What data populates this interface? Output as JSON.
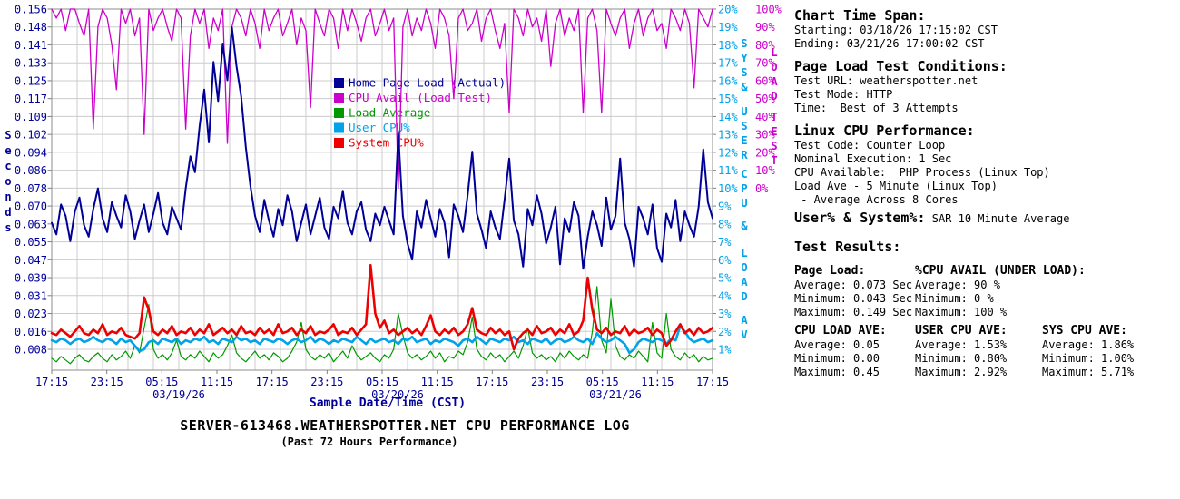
{
  "chart_data": {
    "type": "line",
    "title": "SERVER-613468.WEATHERSPOTTER.NET CPU PERFORMANCE LOG",
    "subtitle": "(Past 72 Hours Performance)",
    "x_start": "03/18/26 17:15",
    "x_end": "03/21/26 17:00",
    "sample_interval_hours": 0.5,
    "grid_color": "#CCCCCC",
    "frame_color": "#A0A0A0",
    "x_axis": {
      "label": "Sample Date/Time (CST)",
      "label_color": "#000099",
      "tick_labels": [
        "17:15",
        "23:15",
        "05:15",
        "11:15",
        "17:15",
        "23:15",
        "05:15",
        "11:15",
        "17:15",
        "23:15",
        "05:15",
        "11:15",
        "17:15"
      ],
      "date_labels": [
        {
          "text": "03/19/26",
          "x": 197
        },
        {
          "text": "03/20/26",
          "x": 438
        },
        {
          "text": "03/21/26",
          "x": 678
        }
      ]
    },
    "y_axis_left": {
      "label": "Seconds",
      "color": "#000099",
      "max": 0.156,
      "min_tick": 0.008,
      "ticks": [
        "0.156",
        "0.148",
        "0.141",
        "0.133",
        "0.125",
        "0.117",
        "0.109",
        "0.102",
        "0.094",
        "0.086",
        "0.078",
        "0.070",
        "0.063",
        "0.055",
        "0.047",
        "0.039",
        "0.031",
        "0.023",
        "0.016",
        "0.008"
      ],
      "title_segments": [
        {
          "text": "Seconds",
          "y": 143
        }
      ]
    },
    "y_axis_right_pct": {
      "label": "SYS & USER CPU & LOAD AV",
      "color": "#00A2E8",
      "max": 20,
      "min_tick": 1,
      "ticks": [
        "20%",
        "19%",
        "18%",
        "17%",
        "16%",
        "15%",
        "14%",
        "13%",
        "12%",
        "11%",
        "10%",
        "9%",
        "8%",
        "7%",
        "6%",
        "5%",
        "4%",
        "3%",
        "2%",
        "1%"
      ],
      "title_segments": [
        {
          "text": "SYS",
          "y": 42
        },
        {
          "text": "&",
          "y": 90
        },
        {
          "text": "USER",
          "y": 117
        },
        {
          "text": "CPU",
          "y": 186
        },
        {
          "text": "&",
          "y": 243
        },
        {
          "text": "LOAD",
          "y": 273
        },
        {
          "text": "AV",
          "y": 347
        }
      ]
    },
    "y_axis_right_load": {
      "label": "LOAD TEST",
      "color": "#CC00CC",
      "max": 100,
      "min_tick": 0,
      "ticks": [
        "100%",
        "90%",
        "80%",
        "70%",
        "60%",
        "50%",
        "40%",
        "30%",
        "20%",
        "10%",
        "0%"
      ],
      "title_segments": [
        {
          "text": "LOAD",
          "y": 52
        },
        {
          "text": "TEST",
          "y": 123
        }
      ]
    },
    "series": [
      {
        "name": "Home Page Load (Actual)",
        "axis": "seconds",
        "color": "#000099",
        "width": 2,
        "z": 2,
        "values": [
          0.063,
          0.058,
          0.071,
          0.066,
          0.055,
          0.068,
          0.074,
          0.062,
          0.057,
          0.069,
          0.078,
          0.065,
          0.059,
          0.072,
          0.066,
          0.061,
          0.075,
          0.068,
          0.056,
          0.064,
          0.071,
          0.059,
          0.067,
          0.076,
          0.063,
          0.058,
          0.07,
          0.065,
          0.06,
          0.078,
          0.092,
          0.085,
          0.105,
          0.121,
          0.098,
          0.133,
          0.116,
          0.141,
          0.125,
          0.148,
          0.131,
          0.118,
          0.096,
          0.079,
          0.066,
          0.059,
          0.073,
          0.064,
          0.057,
          0.069,
          0.062,
          0.075,
          0.068,
          0.055,
          0.063,
          0.071,
          0.058,
          0.066,
          0.074,
          0.061,
          0.056,
          0.07,
          0.065,
          0.077,
          0.063,
          0.058,
          0.068,
          0.072,
          0.06,
          0.055,
          0.067,
          0.062,
          0.07,
          0.064,
          0.058,
          0.102,
          0.066,
          0.054,
          0.047,
          0.068,
          0.061,
          0.073,
          0.065,
          0.057,
          0.069,
          0.063,
          0.048,
          0.071,
          0.066,
          0.059,
          0.075,
          0.094,
          0.067,
          0.06,
          0.052,
          0.068,
          0.061,
          0.056,
          0.073,
          0.091,
          0.064,
          0.058,
          0.044,
          0.069,
          0.062,
          0.075,
          0.067,
          0.054,
          0.061,
          0.07,
          0.045,
          0.065,
          0.059,
          0.072,
          0.066,
          0.043,
          0.057,
          0.068,
          0.062,
          0.053,
          0.074,
          0.06,
          0.066,
          0.091,
          0.063,
          0.056,
          0.044,
          0.07,
          0.065,
          0.058,
          0.071,
          0.052,
          0.046,
          0.067,
          0.061,
          0.073,
          0.055,
          0.068,
          0.062,
          0.057,
          0.07,
          0.095,
          0.072,
          0.065
        ]
      },
      {
        "name": "CPU Avail (Load Test)",
        "axis": "load",
        "color": "#CC00CC",
        "width": 1.3,
        "z": 1,
        "values": [
          100,
          95,
          100,
          88,
          100,
          100,
          92,
          85,
          100,
          33,
          90,
          100,
          95,
          80,
          55,
          100,
          92,
          100,
          85,
          95,
          30,
          100,
          88,
          95,
          100,
          90,
          82,
          100,
          95,
          33,
          85,
          100,
          92,
          100,
          78,
          95,
          88,
          100,
          25,
          90,
          100,
          95,
          85,
          100,
          92,
          78,
          100,
          88,
          95,
          100,
          85,
          92,
          100,
          80,
          95,
          88,
          45,
          100,
          92,
          85,
          100,
          95,
          78,
          100,
          88,
          100,
          92,
          82,
          95,
          100,
          85,
          92,
          100,
          88,
          95,
          0,
          90,
          100,
          85,
          95,
          88,
          100,
          92,
          78,
          100,
          95,
          85,
          50,
          95,
          100,
          88,
          92,
          100,
          82,
          95,
          100,
          88,
          78,
          92,
          42,
          100,
          95,
          85,
          100,
          90,
          95,
          82,
          100,
          68,
          92,
          100,
          85,
          95,
          88,
          100,
          42,
          95,
          100,
          88,
          42,
          100,
          92,
          85,
          95,
          100,
          78,
          92,
          100,
          85,
          95,
          100,
          88,
          92,
          78,
          100,
          95,
          88,
          100,
          92,
          56,
          100,
          95,
          90,
          100
        ]
      },
      {
        "name": "Load Average",
        "axis": "pct",
        "color": "#009900",
        "width": 1.2,
        "z": 3,
        "value_scale": 10,
        "values": [
          0.05,
          0.03,
          0.06,
          0.04,
          0.02,
          0.05,
          0.07,
          0.04,
          0.03,
          0.06,
          0.08,
          0.05,
          0.03,
          0.07,
          0.04,
          0.06,
          0.09,
          0.05,
          0.12,
          0.08,
          0.22,
          0.35,
          0.1,
          0.05,
          0.07,
          0.04,
          0.08,
          0.15,
          0.06,
          0.04,
          0.07,
          0.05,
          0.09,
          0.06,
          0.03,
          0.08,
          0.05,
          0.07,
          0.12,
          0.18,
          0.08,
          0.05,
          0.03,
          0.06,
          0.09,
          0.05,
          0.07,
          0.04,
          0.08,
          0.06,
          0.03,
          0.05,
          0.09,
          0.14,
          0.25,
          0.1,
          0.06,
          0.04,
          0.07,
          0.05,
          0.08,
          0.03,
          0.06,
          0.09,
          0.05,
          0.12,
          0.07,
          0.04,
          0.06,
          0.08,
          0.05,
          0.03,
          0.07,
          0.05,
          0.1,
          0.3,
          0.18,
          0.08,
          0.05,
          0.07,
          0.04,
          0.06,
          0.09,
          0.05,
          0.08,
          0.03,
          0.06,
          0.05,
          0.09,
          0.07,
          0.14,
          0.28,
          0.1,
          0.06,
          0.04,
          0.08,
          0.05,
          0.07,
          0.03,
          0.06,
          0.09,
          0.05,
          0.12,
          0.22,
          0.08,
          0.05,
          0.07,
          0.04,
          0.06,
          0.03,
          0.08,
          0.05,
          0.09,
          0.06,
          0.04,
          0.07,
          0.05,
          0.2,
          0.45,
          0.15,
          0.08,
          0.38,
          0.12,
          0.06,
          0.04,
          0.07,
          0.05,
          0.09,
          0.06,
          0.03,
          0.25,
          0.08,
          0.05,
          0.3,
          0.1,
          0.06,
          0.04,
          0.08,
          0.05,
          0.07,
          0.03,
          0.06,
          0.04,
          0.05
        ]
      },
      {
        "name": "User CPU%",
        "axis": "pct",
        "color": "#00A2E8",
        "width": 2.6,
        "z": 4,
        "values": [
          1.5,
          1.4,
          1.6,
          1.5,
          1.3,
          1.5,
          1.6,
          1.4,
          1.5,
          1.7,
          1.5,
          1.4,
          1.6,
          1.5,
          1.3,
          1.6,
          1.4,
          1.5,
          1.2,
          0.9,
          1.0,
          1.4,
          1.5,
          1.3,
          1.6,
          1.5,
          1.4,
          1.6,
          1.3,
          1.5,
          1.4,
          1.6,
          1.5,
          1.7,
          1.4,
          1.5,
          1.3,
          1.6,
          1.5,
          1.4,
          1.7,
          1.5,
          1.6,
          1.4,
          1.5,
          1.3,
          1.6,
          1.5,
          1.4,
          1.6,
          1.5,
          1.3,
          1.5,
          1.6,
          1.4,
          1.5,
          1.7,
          1.4,
          1.6,
          1.5,
          1.3,
          1.5,
          1.4,
          1.6,
          1.5,
          1.4,
          1.7,
          1.5,
          1.3,
          1.6,
          1.4,
          1.5,
          1.6,
          1.4,
          1.5,
          1.3,
          1.6,
          1.5,
          1.7,
          1.4,
          1.5,
          1.6,
          1.3,
          1.5,
          1.4,
          1.6,
          1.5,
          1.4,
          1.2,
          1.5,
          1.6,
          1.4,
          1.7,
          1.5,
          1.3,
          1.6,
          1.5,
          1.4,
          1.6,
          1.5,
          1.7,
          1.4,
          1.5,
          1.3,
          1.6,
          1.5,
          1.4,
          1.6,
          1.3,
          1.5,
          1.6,
          1.4,
          1.5,
          1.7,
          1.5,
          1.4,
          1.6,
          1.3,
          1.9,
          1.6,
          1.4,
          1.5,
          1.7,
          1.5,
          1.3,
          0.8,
          1.0,
          1.4,
          1.6,
          1.5,
          1.4,
          1.6,
          1.5,
          1.3,
          1.6,
          1.5,
          2.3,
          2.0,
          1.6,
          1.4,
          1.5,
          1.6,
          1.4,
          1.5
        ]
      },
      {
        "name": "System CPU%",
        "axis": "pct",
        "color": "#EE0000",
        "width": 2.6,
        "z": 5,
        "values": [
          1.9,
          1.8,
          2.1,
          1.9,
          1.7,
          2.0,
          2.3,
          1.9,
          1.8,
          2.1,
          1.9,
          2.4,
          1.8,
          2.0,
          1.9,
          2.2,
          1.8,
          1.7,
          1.6,
          1.9,
          3.9,
          3.2,
          2.0,
          1.8,
          2.1,
          1.9,
          2.3,
          1.8,
          2.0,
          1.9,
          2.2,
          1.8,
          2.1,
          1.9,
          2.4,
          1.8,
          2.0,
          2.2,
          1.9,
          2.1,
          1.8,
          2.3,
          1.9,
          2.0,
          1.8,
          2.2,
          1.9,
          2.1,
          1.8,
          2.4,
          1.9,
          2.0,
          2.2,
          1.8,
          2.1,
          1.9,
          2.3,
          1.8,
          2.0,
          1.9,
          2.1,
          2.4,
          1.8,
          2.0,
          1.9,
          2.2,
          1.8,
          2.1,
          2.4,
          5.7,
          3.0,
          2.2,
          2.6,
          1.9,
          2.1,
          1.8,
          2.0,
          2.2,
          1.9,
          2.1,
          1.8,
          2.3,
          2.9,
          2.0,
          1.8,
          2.1,
          1.9,
          2.2,
          1.8,
          2.0,
          2.4,
          3.3,
          2.1,
          1.9,
          1.8,
          2.2,
          1.9,
          2.1,
          1.8,
          2.0,
          1.0,
          1.6,
          1.9,
          2.1,
          1.8,
          2.3,
          1.9,
          2.0,
          2.2,
          1.8,
          2.1,
          1.9,
          2.4,
          1.8,
          2.0,
          2.6,
          5.0,
          3.2,
          2.1,
          1.9,
          2.2,
          1.8,
          2.0,
          1.9,
          2.3,
          1.8,
          2.1,
          1.9,
          2.0,
          2.2,
          1.8,
          2.1,
          1.9,
          1.2,
          1.5,
          2.0,
          2.4,
          1.9,
          2.1,
          1.8,
          2.2,
          1.9,
          2.0,
          2.2
        ]
      }
    ]
  },
  "info_panel": {
    "sections": [
      {
        "heading": "Chart Time Span:",
        "lines": [
          "Starting: 03/18/26 17:15:02 CST",
          "Ending: 03/21/26 17:00:02 CST"
        ]
      },
      {
        "heading": "Page Load Test Conditions:",
        "lines": [
          "Test URL: weatherspotter.net",
          "Test Mode: HTTP",
          "Time:  Best of 3 Attempts"
        ]
      },
      {
        "heading": "Linux CPU Performance:",
        "lines": [
          "Test Code: Counter Loop",
          "Nominal Execution: 1 Sec",
          "CPU Available:  PHP Process (Linux Top)",
          "Load Ave - 5 Minute (Linux Top)",
          " - Average Across 8 Cores"
        ]
      },
      {
        "heading": "User% & System%:",
        "inline": "SAR 10 Minute Average",
        "lines": []
      },
      {
        "heading": "Test Results:",
        "lines": []
      }
    ],
    "results_rows": [
      [
        {
          "heading": "Page Load:",
          "rows": [
            "Average: 0.073 Sec",
            "Minimum: 0.043 Sec",
            "Maximum: 0.149 Sec"
          ]
        },
        {
          "heading": "%CPU AVAIL (UNDER LOAD):",
          "rows": [
            "Average: 90 %",
            "Minimum: 0 %",
            "Maximum: 100 %"
          ]
        }
      ],
      [
        {
          "heading": "CPU LOAD AVE:",
          "rows": [
            "Average: 0.05",
            "Minimum: 0.00",
            "Maximum: 0.45"
          ]
        },
        {
          "heading": "USER CPU AVE:",
          "rows": [
            "Average: 1.53%",
            "Minimum: 0.80%",
            "Maximum: 2.92%"
          ]
        },
        {
          "heading": "SYS CPU AVE:",
          "rows": [
            "Average: 1.86%",
            "Minimum: 1.00%",
            "Maximum: 5.71%"
          ]
        }
      ]
    ]
  }
}
